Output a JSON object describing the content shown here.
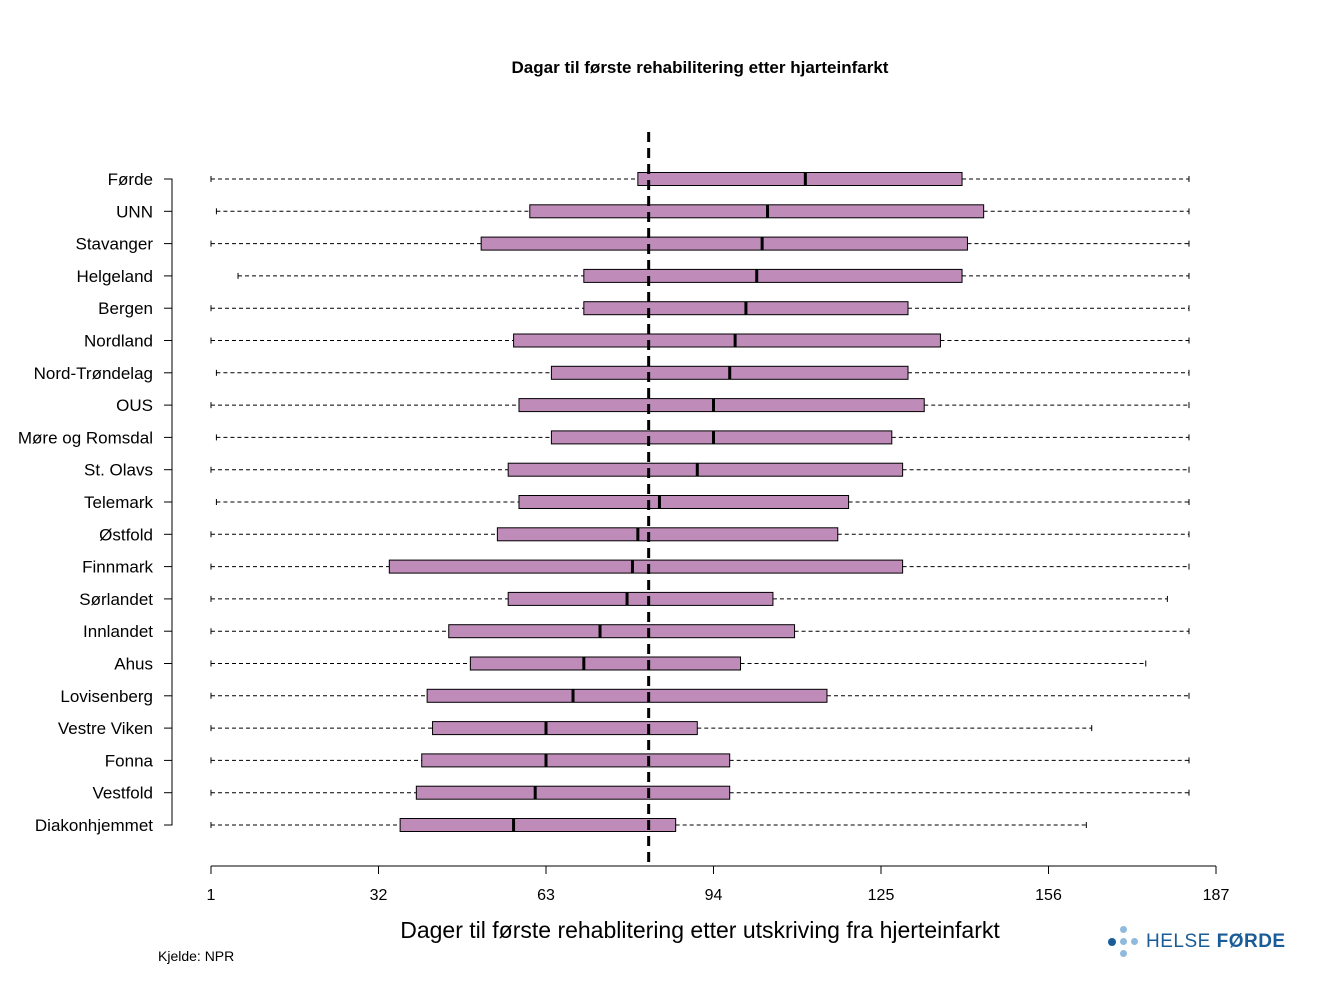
{
  "title": "Dagar til første rehabilitering  etter hjarteinfarkt",
  "source": "Kjelde: NPR",
  "logo": {
    "word1": "HELSE ",
    "word2": "FØRDE"
  },
  "colors": {
    "box_fill": "#bf8bb9",
    "logo_blue": "#1a5c97",
    "logo_dot": "#8fb9dd"
  },
  "chart_data": {
    "type": "boxplot",
    "orientation": "horizontal",
    "title": "Dagar til første rehabilitering  etter hjarteinfarkt",
    "xlabel": "Dager til første rehablitering etter utskriving fra hjerteinfarkt",
    "xlim": [
      1,
      187
    ],
    "xticks": [
      1,
      32,
      63,
      94,
      125,
      156,
      187
    ],
    "reference_line": 82,
    "categories": [
      "Førde",
      "UNN",
      "Stavanger",
      "Helgeland",
      "Bergen",
      "Nordland",
      "Nord-Trøndelag",
      "OUS",
      "Møre og Romsdal",
      "St. Olavs",
      "Telemark",
      "Østfold",
      "Finnmark",
      "Sørlandet",
      "Innlandet",
      "Ahus",
      "Lovisenberg",
      "Vestre Viken",
      "Fonna",
      "Vestfold",
      "Diakonhjemmet"
    ],
    "boxes": [
      {
        "name": "Førde",
        "whisker_low": 1,
        "q1": 80,
        "median": 111,
        "q3": 140,
        "whisker_high": 182
      },
      {
        "name": "UNN",
        "whisker_low": 2,
        "q1": 60,
        "median": 104,
        "q3": 144,
        "whisker_high": 182
      },
      {
        "name": "Stavanger",
        "whisker_low": 1,
        "q1": 51,
        "median": 103,
        "q3": 141,
        "whisker_high": 182
      },
      {
        "name": "Helgeland",
        "whisker_low": 6,
        "q1": 70,
        "median": 102,
        "q3": 140,
        "whisker_high": 182
      },
      {
        "name": "Bergen",
        "whisker_low": 1,
        "q1": 70,
        "median": 100,
        "q3": 130,
        "whisker_high": 182
      },
      {
        "name": "Nordland",
        "whisker_low": 1,
        "q1": 57,
        "median": 98,
        "q3": 136,
        "whisker_high": 182
      },
      {
        "name": "Nord-Trøndelag",
        "whisker_low": 2,
        "q1": 64,
        "median": 97,
        "q3": 130,
        "whisker_high": 182
      },
      {
        "name": "OUS",
        "whisker_low": 1,
        "q1": 58,
        "median": 94,
        "q3": 133,
        "whisker_high": 182
      },
      {
        "name": "Møre og Romsdal",
        "whisker_low": 2,
        "q1": 64,
        "median": 94,
        "q3": 127,
        "whisker_high": 182
      },
      {
        "name": "St. Olavs",
        "whisker_low": 1,
        "q1": 56,
        "median": 91,
        "q3": 129,
        "whisker_high": 182
      },
      {
        "name": "Telemark",
        "whisker_low": 2,
        "q1": 58,
        "median": 84,
        "q3": 119,
        "whisker_high": 182
      },
      {
        "name": "Østfold",
        "whisker_low": 1,
        "q1": 54,
        "median": 80,
        "q3": 117,
        "whisker_high": 182
      },
      {
        "name": "Finnmark",
        "whisker_low": 1,
        "q1": 34,
        "median": 79,
        "q3": 129,
        "whisker_high": 182
      },
      {
        "name": "Sørlandet",
        "whisker_low": 1,
        "q1": 56,
        "median": 78,
        "q3": 105,
        "whisker_high": 178
      },
      {
        "name": "Innlandet",
        "whisker_low": 1,
        "q1": 45,
        "median": 73,
        "q3": 109,
        "whisker_high": 182
      },
      {
        "name": "Ahus",
        "whisker_low": 1,
        "q1": 49,
        "median": 70,
        "q3": 99,
        "whisker_high": 174
      },
      {
        "name": "Lovisenberg",
        "whisker_low": 1,
        "q1": 41,
        "median": 68,
        "q3": 115,
        "whisker_high": 182
      },
      {
        "name": "Vestre Viken",
        "whisker_low": 1,
        "q1": 42,
        "median": 63,
        "q3": 91,
        "whisker_high": 164
      },
      {
        "name": "Fonna",
        "whisker_low": 1,
        "q1": 40,
        "median": 63,
        "q3": 97,
        "whisker_high": 182
      },
      {
        "name": "Vestfold",
        "whisker_low": 1,
        "q1": 39,
        "median": 61,
        "q3": 97,
        "whisker_high": 182
      },
      {
        "name": "Diakonhjemmet",
        "whisker_low": 1,
        "q1": 36,
        "median": 57,
        "q3": 87,
        "whisker_high": 163
      }
    ]
  }
}
